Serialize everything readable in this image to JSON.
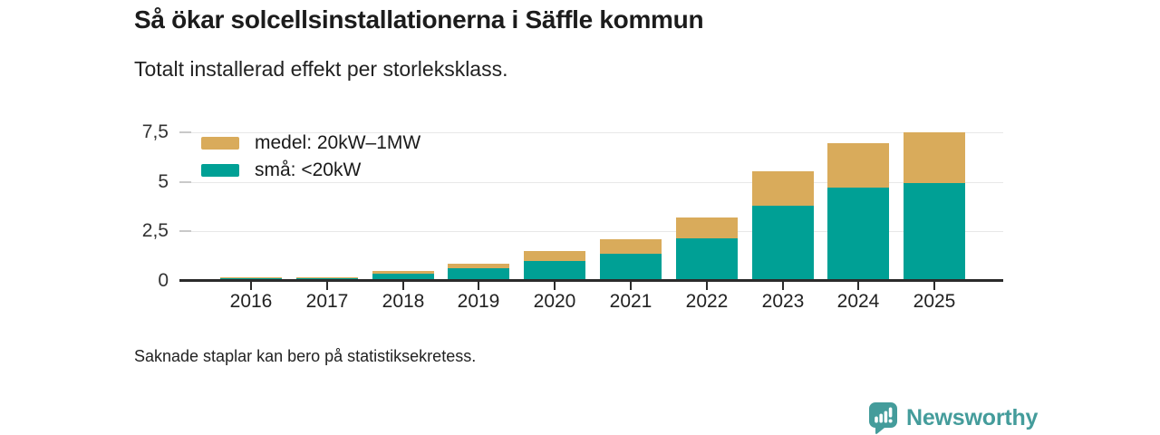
{
  "header": {
    "title": "Så ökar solcellsinstallationerna i Säffle kommun",
    "subtitle": "Totalt installerad effekt per storleksklass."
  },
  "footer": {
    "note": "Saknade staplar kan bero på statistiksekretess."
  },
  "branding": {
    "logo_text": "Newsworthy",
    "logo_color": "#449c9b",
    "logo_icon": "bar-chart-speech-bubble-icon"
  },
  "chart_data": {
    "type": "bar",
    "stacked": true,
    "title": "Så ökar solcellsinstallationerna i Säffle kommun",
    "subtitle": "Totalt installerad effekt per storleksklass.",
    "categories": [
      "2016",
      "2017",
      "2018",
      "2019",
      "2020",
      "2021",
      "2022",
      "2023",
      "2024",
      "2025"
    ],
    "series": [
      {
        "name": "medel: 20kW–1MW",
        "color": "#d9ab5b",
        "stack_position": "top",
        "values": [
          0.03,
          0.06,
          0.13,
          0.22,
          0.5,
          0.74,
          1.05,
          1.75,
          2.25,
          2.58
        ]
      },
      {
        "name": "små: <20kW",
        "color": "#00a095",
        "stack_position": "bottom",
        "values": [
          0.13,
          0.16,
          0.38,
          0.62,
          1.02,
          1.38,
          2.15,
          3.8,
          4.7,
          4.92
        ]
      }
    ],
    "totals": [
      0.16,
      0.22,
      0.51,
      0.84,
      1.52,
      2.12,
      3.2,
      5.55,
      6.95,
      7.5
    ],
    "xlabel": "",
    "ylabel": "",
    "ylim": [
      0,
      7.5
    ],
    "yticks": [
      0,
      2.5,
      5,
      7.5
    ],
    "ytick_labels": [
      "0",
      "2,5",
      "5",
      "7,5"
    ],
    "grid": "horizontal",
    "legend_position": "top-left-inside",
    "axis_color": "#2b2b2b",
    "gridline_color": "#e8e8e8"
  }
}
